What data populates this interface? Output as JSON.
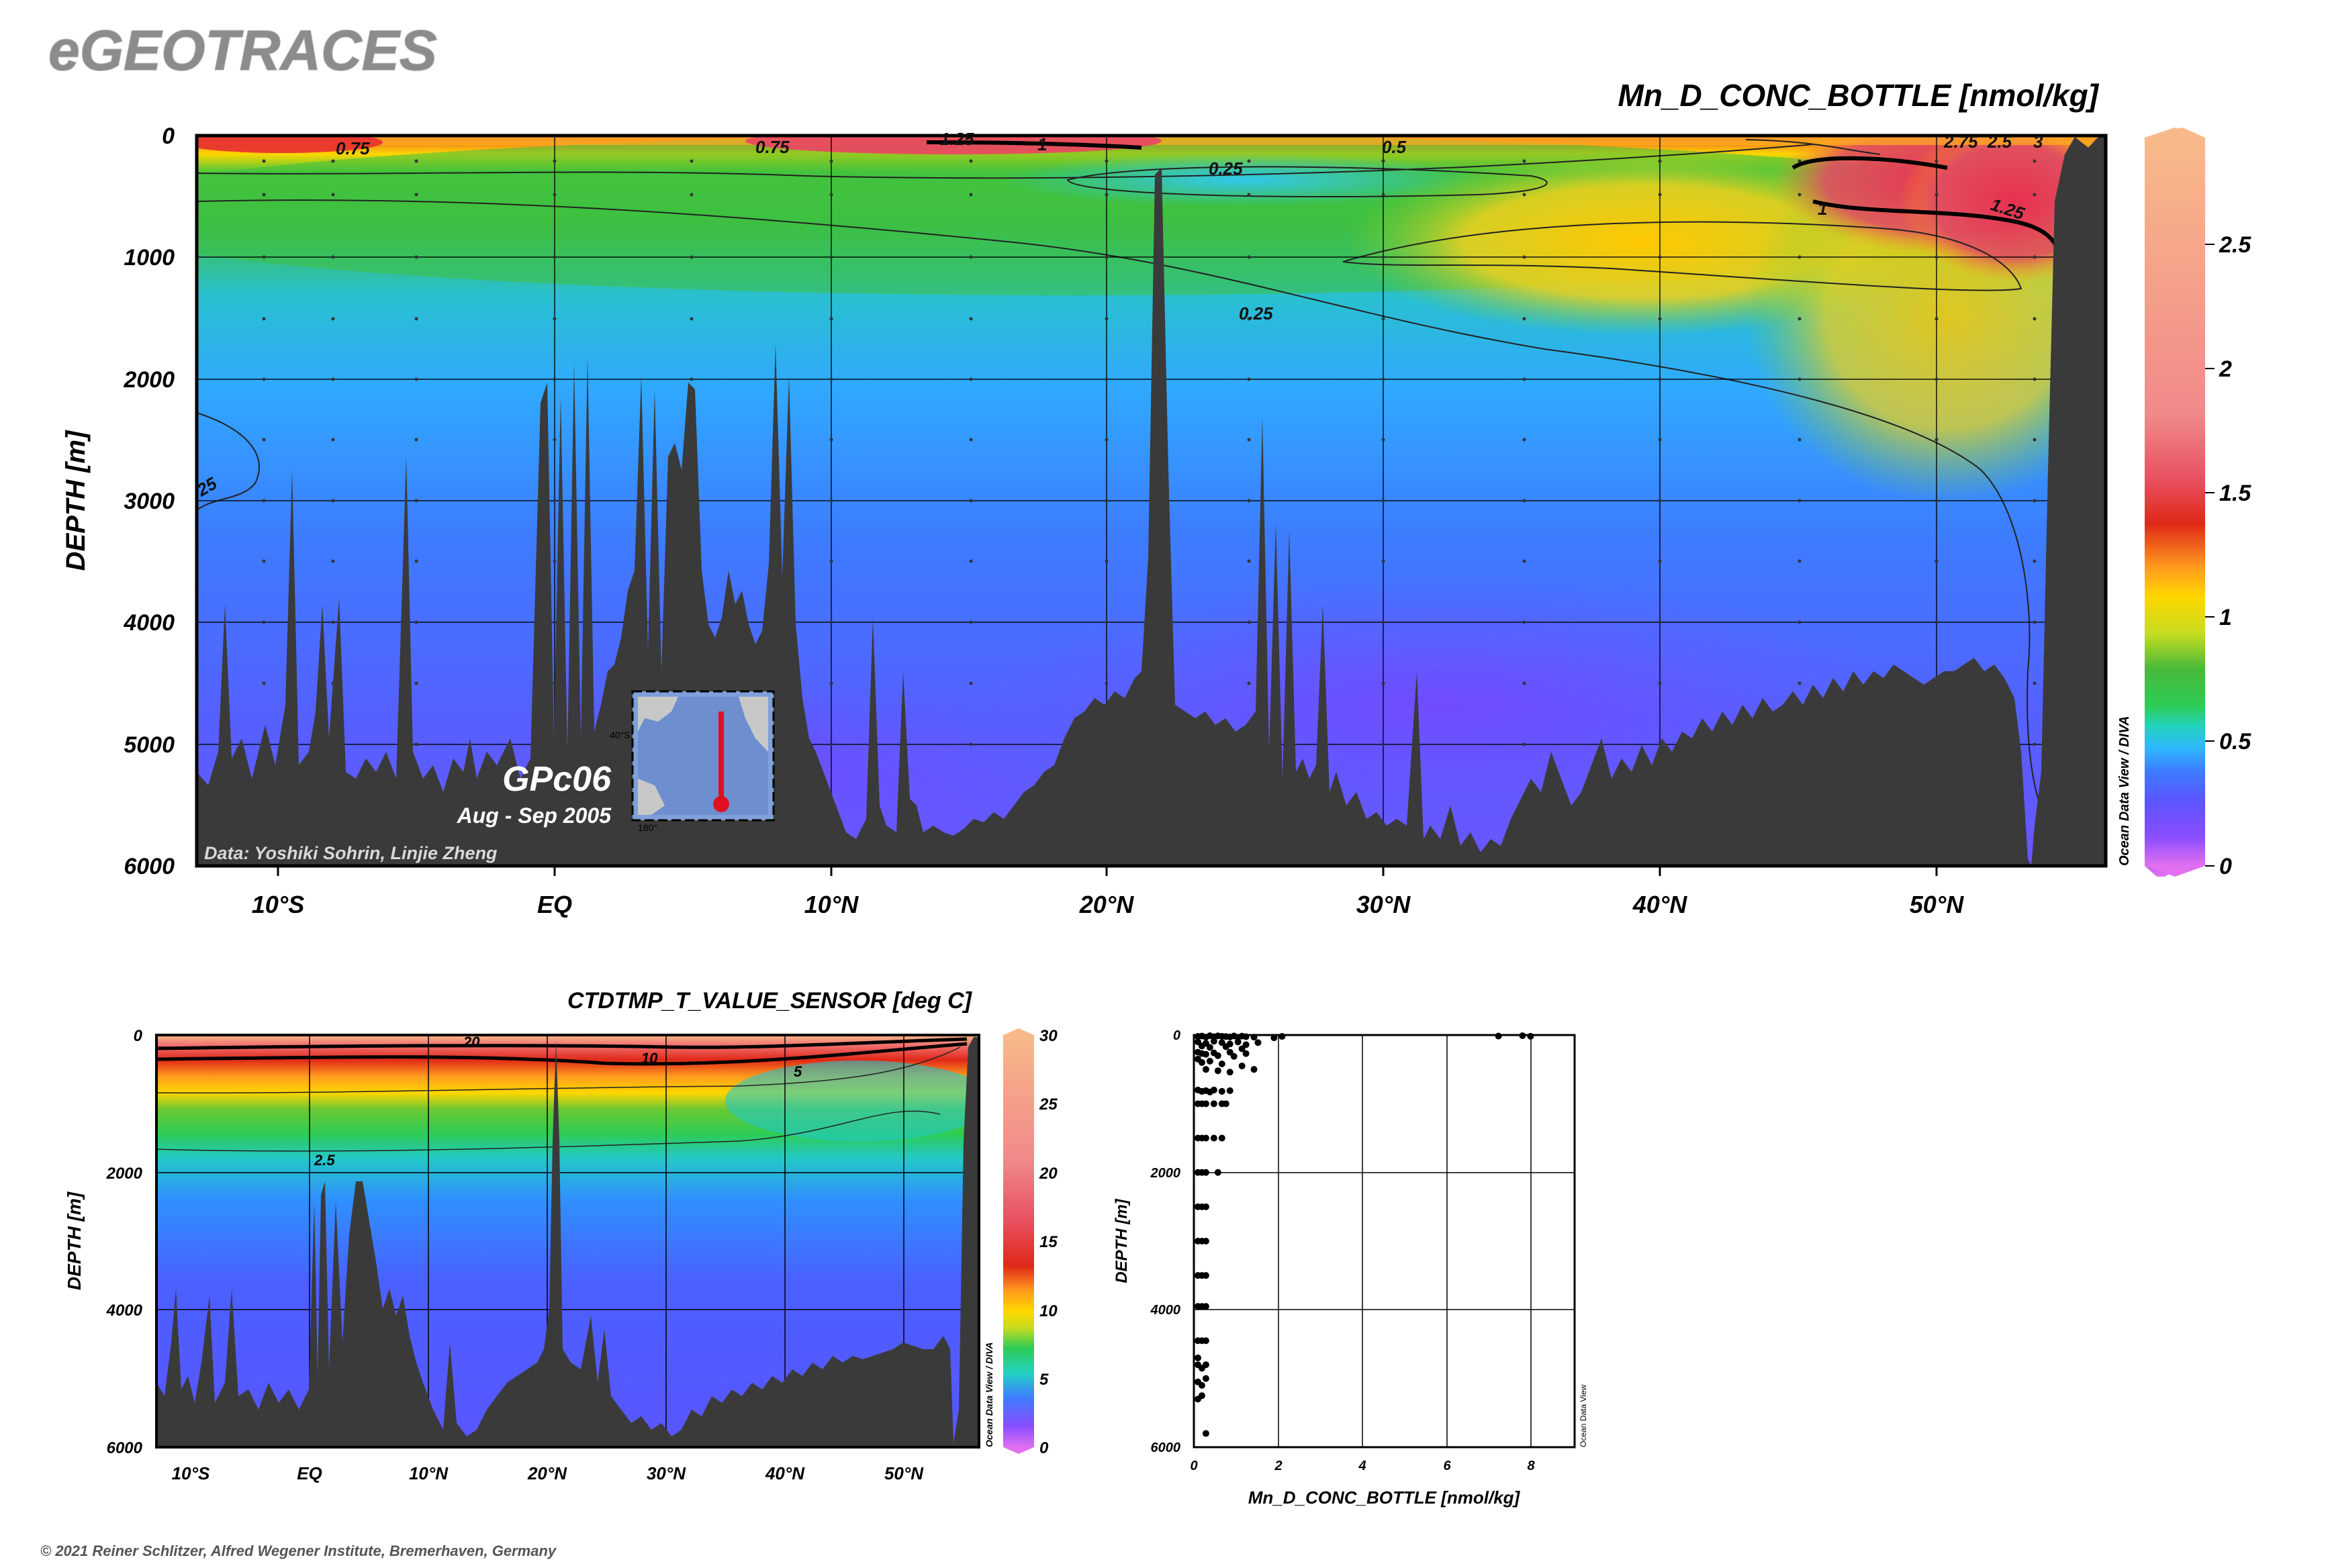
{
  "brand": "eGEOTRACES",
  "copyright": "© 2021 Reiner Schlitzer, Alfred Wegener Institute, Bremerhaven, Germany",
  "colors": {
    "topography": "#3a3a3a",
    "scale_stops": [
      "#e070f0",
      "#8a4dff",
      "#5a55ff",
      "#3d7cff",
      "#2fb4ff",
      "#23d2c3",
      "#2dcc55",
      "#48b93a",
      "#c8dc1e",
      "#ffd700",
      "#ff9a1e",
      "#e02818",
      "#e85060",
      "#f08a8a",
      "#f9b98a"
    ]
  },
  "chart_data": [
    {
      "type": "heatmap",
      "name": "main-section",
      "title": "Mn_D_CONC_BOTTLE [nmol/kg]",
      "ylabel": "DEPTH [m]",
      "xlabel": "",
      "x_range_lat": [
        -13,
        56
      ],
      "y_range_m": [
        6000,
        0
      ],
      "x_ticks": [
        "10°S",
        "EQ",
        "10°N",
        "20°N",
        "30°N",
        "40°N",
        "50°N"
      ],
      "x_tick_values": [
        -10,
        0,
        10,
        20,
        30,
        40,
        50
      ],
      "y_ticks": [
        "0",
        "1000",
        "2000",
        "3000",
        "4000",
        "5000",
        "6000"
      ],
      "y_tick_values": [
        0,
        1000,
        2000,
        3000,
        4000,
        5000,
        6000
      ],
      "colorbar_range": [
        0,
        2.9
      ],
      "colorbar_ticks": [
        "0",
        "0.5",
        "1",
        "1.5",
        "2",
        "2.5"
      ],
      "colorbar_tick_values": [
        0,
        0.5,
        1,
        1.5,
        2,
        2.5
      ],
      "contour_labels": [
        "0.75",
        "0.75",
        "1.25",
        "1",
        "0.5",
        "0.25",
        "0.25",
        "1",
        "1.25",
        "2.75",
        "2.5",
        "3",
        "25"
      ],
      "cruise_label": "GPc06",
      "cruise_dates": "Aug - Sep 2005",
      "credit": "Data: Yoshiki Sohrin, Linjie Zheng",
      "odv_watermark": "Ocean Data View / DIVA",
      "inset_map_labels": [
        "40°S",
        "180°"
      ]
    },
    {
      "type": "heatmap",
      "name": "temperature-section",
      "title": "CTDTMP_T_VALUE_SENSOR [deg C]",
      "ylabel": "DEPTH [m]",
      "x_range_lat": [
        -13,
        56
      ],
      "y_range_m": [
        6000,
        0
      ],
      "x_ticks": [
        "10°S",
        "EQ",
        "10°N",
        "20°N",
        "30°N",
        "40°N",
        "50°N"
      ],
      "x_tick_values": [
        -10,
        0,
        10,
        20,
        30,
        40,
        50
      ],
      "y_ticks": [
        "0",
        "2000",
        "4000",
        "6000"
      ],
      "y_tick_values": [
        0,
        2000,
        4000,
        6000
      ],
      "colorbar_range": [
        0,
        30
      ],
      "colorbar_ticks": [
        "0",
        "5",
        "10",
        "15",
        "20",
        "25",
        "30"
      ],
      "colorbar_tick_values": [
        0,
        5,
        10,
        15,
        20,
        25,
        30
      ],
      "contour_labels": [
        "20",
        "10",
        "5",
        "2.5"
      ],
      "odv_watermark": "Ocean Data View / DIVA"
    },
    {
      "type": "scatter",
      "name": "mn-profile-scatter",
      "xlabel": "Mn_D_CONC_BOTTLE [nmol/kg]",
      "ylabel": "DEPTH [m]",
      "xlim": [
        0,
        9.5
      ],
      "ylim": [
        6000,
        0
      ],
      "x_ticks": [
        "0",
        "2",
        "4",
        "6",
        "8"
      ],
      "x_tick_values": [
        0,
        2,
        4,
        6,
        8
      ],
      "y_ticks": [
        "0",
        "2000",
        "4000",
        "6000"
      ],
      "y_tick_values": [
        0,
        2000,
        4000,
        6000
      ],
      "odv_watermark": "Ocean Data View",
      "points": [
        [
          0.1,
          20
        ],
        [
          0.2,
          15
        ],
        [
          0.3,
          30
        ],
        [
          0.4,
          10
        ],
        [
          0.5,
          25
        ],
        [
          0.6,
          12
        ],
        [
          0.7,
          18
        ],
        [
          0.8,
          22
        ],
        [
          0.9,
          28
        ],
        [
          1.0,
          14
        ],
        [
          1.1,
          35
        ],
        [
          1.2,
          16
        ],
        [
          1.3,
          24
        ],
        [
          1.5,
          30
        ],
        [
          2.0,
          40
        ],
        [
          2.2,
          20
        ],
        [
          7.6,
          15
        ],
        [
          8.2,
          10
        ],
        [
          8.4,
          18
        ],
        [
          0.1,
          100
        ],
        [
          0.3,
          120
        ],
        [
          0.5,
          90
        ],
        [
          0.7,
          110
        ],
        [
          0.9,
          130
        ],
        [
          1.1,
          100
        ],
        [
          1.3,
          140
        ],
        [
          1.6,
          110
        ],
        [
          0.2,
          160
        ],
        [
          0.4,
          180
        ],
        [
          0.8,
          170
        ],
        [
          1.2,
          200
        ],
        [
          0.1,
          250
        ],
        [
          0.2,
          270
        ],
        [
          0.3,
          280
        ],
        [
          0.5,
          260
        ],
        [
          0.6,
          300
        ],
        [
          0.9,
          250
        ],
        [
          1.0,
          310
        ],
        [
          1.3,
          270
        ],
        [
          0.1,
          350
        ],
        [
          0.2,
          400
        ],
        [
          0.4,
          380
        ],
        [
          0.7,
          420
        ],
        [
          1.2,
          450
        ],
        [
          1.5,
          500
        ],
        [
          0.3,
          500
        ],
        [
          0.6,
          520
        ],
        [
          0.9,
          540
        ],
        [
          0.1,
          800
        ],
        [
          0.2,
          820
        ],
        [
          0.3,
          810
        ],
        [
          0.4,
          830
        ],
        [
          0.5,
          800
        ],
        [
          0.7,
          820
        ],
        [
          0.9,
          810
        ],
        [
          0.1,
          1000
        ],
        [
          0.2,
          1000
        ],
        [
          0.3,
          1000
        ],
        [
          0.5,
          1000
        ],
        [
          0.7,
          1000
        ],
        [
          0.8,
          1000
        ],
        [
          0.1,
          1500
        ],
        [
          0.2,
          1500
        ],
        [
          0.3,
          1500
        ],
        [
          0.5,
          1500
        ],
        [
          0.7,
          1500
        ],
        [
          0.1,
          2000
        ],
        [
          0.2,
          2000
        ],
        [
          0.3,
          2000
        ],
        [
          0.6,
          2000
        ],
        [
          0.1,
          2500
        ],
        [
          0.2,
          2500
        ],
        [
          0.3,
          2500
        ],
        [
          0.1,
          3000
        ],
        [
          0.2,
          3000
        ],
        [
          0.3,
          3000
        ],
        [
          0.1,
          3500
        ],
        [
          0.2,
          3500
        ],
        [
          0.3,
          3500
        ],
        [
          0.1,
          3950
        ],
        [
          0.2,
          3950
        ],
        [
          0.3,
          3950
        ],
        [
          0.1,
          4450
        ],
        [
          0.2,
          4450
        ],
        [
          0.3,
          4450
        ],
        [
          0.1,
          4800
        ],
        [
          0.2,
          4850
        ],
        [
          0.3,
          4800
        ],
        [
          0.1,
          5050
        ],
        [
          0.2,
          5100
        ],
        [
          0.3,
          5000
        ],
        [
          0.1,
          5300
        ],
        [
          0.2,
          5250
        ],
        [
          0.1,
          4700
        ],
        [
          0.3,
          5800
        ]
      ]
    }
  ]
}
